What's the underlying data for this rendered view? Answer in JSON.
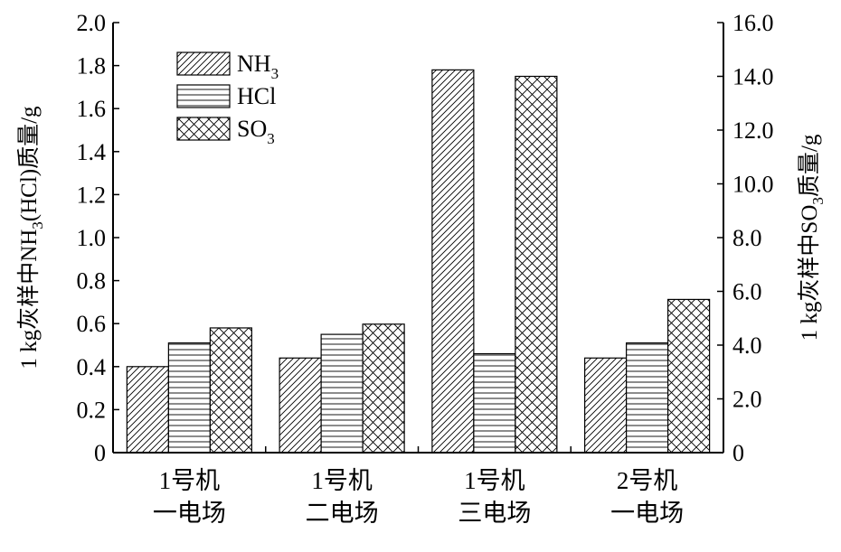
{
  "chart_data": {
    "type": "bar",
    "categories": [
      [
        "1号机",
        "一电场"
      ],
      [
        "1号机",
        "二电场"
      ],
      [
        "1号机",
        "三电场"
      ],
      [
        "2号机",
        "一电场"
      ]
    ],
    "series": [
      {
        "name": "NH3",
        "label_main": "NH",
        "label_sub": "3",
        "axis": "left",
        "pattern": "diagonal",
        "values": [
          0.4,
          0.44,
          1.78,
          0.44
        ]
      },
      {
        "name": "HCl",
        "label_main": "HCl",
        "label_sub": "",
        "axis": "left",
        "pattern": "horizontal",
        "values": [
          0.51,
          0.55,
          0.46,
          0.51
        ]
      },
      {
        "name": "SO3",
        "label_main": "SO",
        "label_sub": "3",
        "axis": "right",
        "pattern": "crosshatch",
        "values": [
          4.64,
          4.78,
          14.0,
          5.7
        ]
      }
    ],
    "y_left": {
      "label_parts": [
        "1 kg灰样中NH",
        "3",
        "(HCl)质量/g"
      ],
      "ylim": [
        0,
        2.0
      ],
      "ticks": [
        "0",
        "0.2",
        "0.4",
        "0.6",
        "0.8",
        "1.0",
        "1.2",
        "1.4",
        "1.6",
        "1.8",
        "2.0"
      ]
    },
    "y_right": {
      "label_parts": [
        "1 kg灰样中SO",
        "3",
        "质量/g"
      ],
      "ylim": [
        0,
        16.0
      ],
      "ticks": [
        "0",
        "2.0",
        "4.0",
        "6.0",
        "8.0",
        "10.0",
        "12.0",
        "14.0",
        "16.0"
      ]
    },
    "legend_position": "top-left",
    "grid": false
  }
}
